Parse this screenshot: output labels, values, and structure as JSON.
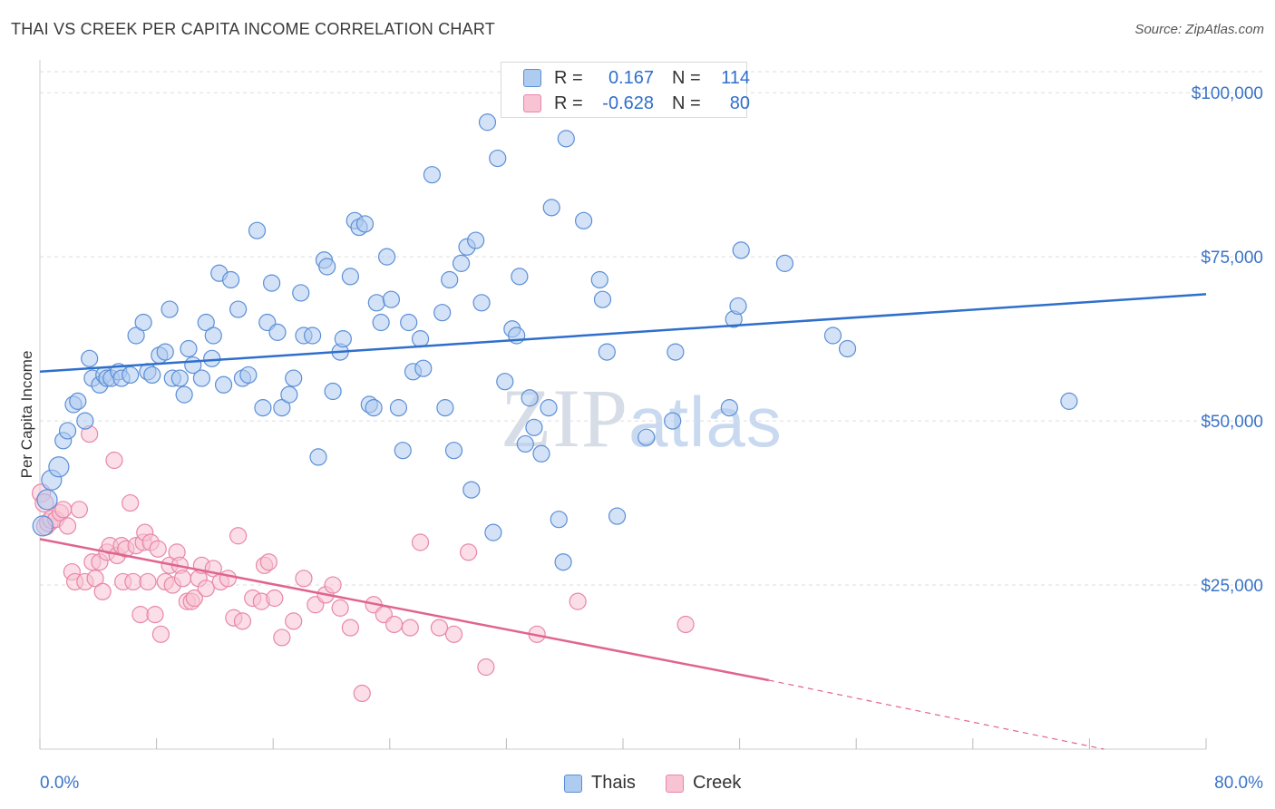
{
  "title": "THAI VS CREEK PER CAPITA INCOME CORRELATION CHART",
  "source": "Source: ZipAtlas.com",
  "watermark": {
    "part1": "ZIP",
    "part2": "atlas"
  },
  "legend_top": {
    "rows": [
      {
        "r_label": "R =",
        "r_value": "0.167",
        "n_label": "N =",
        "n_value": "114"
      },
      {
        "r_label": "R =",
        "r_value": "-0.628",
        "n_label": "N =",
        "n_value": "80"
      }
    ]
  },
  "legend_bottom": [
    "Thais",
    "Creek"
  ],
  "colors": {
    "thais_fill": "#aecbf0",
    "thais_stroke": "#5b8fd6",
    "thais_line": "#2f6fcb",
    "creek_fill": "#f8c3d3",
    "creek_stroke": "#e887a7",
    "creek_line": "#e0648f",
    "axis_label": "#3a74c8",
    "grid": "#dddddd"
  },
  "chart_data": {
    "type": "scatter",
    "title": "THAI VS CREEK PER CAPITA INCOME CORRELATION CHART",
    "xlabel": "",
    "ylabel": "Per Capita Income",
    "xlim": [
      0,
      80
    ],
    "ylim": [
      0,
      105000
    ],
    "x_tick_labels": [
      "0.0%",
      "80.0%"
    ],
    "y_ticks": [
      25000,
      50000,
      75000,
      100000
    ],
    "y_tick_labels": [
      "$25,000",
      "$50,000",
      "$75,000",
      "$100,000"
    ],
    "grid": true,
    "series": [
      {
        "name": "Thais",
        "r": 0.167,
        "n": 114,
        "trend": {
          "x": [
            0,
            80
          ],
          "y": [
            57500,
            69300
          ]
        },
        "points": [
          [
            0.2,
            34000
          ],
          [
            0.5,
            38000
          ],
          [
            0.8,
            41000
          ],
          [
            1.3,
            43000
          ],
          [
            1.6,
            47000
          ],
          [
            1.9,
            48500
          ],
          [
            2.3,
            52500
          ],
          [
            2.6,
            53000
          ],
          [
            3.1,
            50000
          ],
          [
            3.4,
            59500
          ],
          [
            3.6,
            56500
          ],
          [
            4.1,
            55500
          ],
          [
            4.4,
            57000
          ],
          [
            4.6,
            56500
          ],
          [
            4.9,
            56500
          ],
          [
            5.4,
            57500
          ],
          [
            5.6,
            56500
          ],
          [
            6.2,
            57000
          ],
          [
            6.6,
            63000
          ],
          [
            7.1,
            65000
          ],
          [
            7.4,
            57500
          ],
          [
            7.7,
            57000
          ],
          [
            8.2,
            60000
          ],
          [
            8.6,
            60500
          ],
          [
            8.9,
            67000
          ],
          [
            9.1,
            56500
          ],
          [
            9.6,
            56500
          ],
          [
            9.9,
            54000
          ],
          [
            10.2,
            61000
          ],
          [
            10.5,
            58500
          ],
          [
            11.1,
            56500
          ],
          [
            11.4,
            65000
          ],
          [
            11.8,
            59500
          ],
          [
            11.9,
            63000
          ],
          [
            12.3,
            72500
          ],
          [
            12.6,
            55500
          ],
          [
            13.1,
            71500
          ],
          [
            13.6,
            67000
          ],
          [
            13.9,
            56500
          ],
          [
            14.3,
            57000
          ],
          [
            14.9,
            79000
          ],
          [
            15.3,
            52000
          ],
          [
            15.6,
            65000
          ],
          [
            15.9,
            71000
          ],
          [
            16.3,
            63500
          ],
          [
            16.6,
            52000
          ],
          [
            17.1,
            54000
          ],
          [
            17.4,
            56500
          ],
          [
            17.9,
            69500
          ],
          [
            18.1,
            63000
          ],
          [
            18.7,
            63000
          ],
          [
            19.1,
            44500
          ],
          [
            19.5,
            74500
          ],
          [
            19.7,
            73500
          ],
          [
            20.1,
            54500
          ],
          [
            20.6,
            60500
          ],
          [
            20.8,
            62500
          ],
          [
            21.3,
            72000
          ],
          [
            21.6,
            80500
          ],
          [
            21.9,
            79500
          ],
          [
            22.3,
            80000
          ],
          [
            22.6,
            52500
          ],
          [
            22.9,
            52000
          ],
          [
            23.1,
            68000
          ],
          [
            23.4,
            65000
          ],
          [
            23.8,
            75000
          ],
          [
            24.1,
            68500
          ],
          [
            24.6,
            52000
          ],
          [
            24.9,
            45500
          ],
          [
            25.3,
            65000
          ],
          [
            25.6,
            57500
          ],
          [
            26.1,
            62500
          ],
          [
            26.3,
            58000
          ],
          [
            26.9,
            87500
          ],
          [
            27.6,
            66500
          ],
          [
            27.8,
            52000
          ],
          [
            28.1,
            71500
          ],
          [
            28.4,
            45500
          ],
          [
            28.9,
            74000
          ],
          [
            29.3,
            76500
          ],
          [
            29.6,
            39500
          ],
          [
            29.9,
            77500
          ],
          [
            30.3,
            68000
          ],
          [
            30.7,
            95500
          ],
          [
            31.1,
            33000
          ],
          [
            31.4,
            90000
          ],
          [
            31.9,
            56000
          ],
          [
            32.4,
            64000
          ],
          [
            32.7,
            63000
          ],
          [
            32.9,
            72000
          ],
          [
            33.3,
            46500
          ],
          [
            33.6,
            53500
          ],
          [
            33.9,
            49000
          ],
          [
            34.4,
            45000
          ],
          [
            34.9,
            52000
          ],
          [
            35.1,
            82500
          ],
          [
            35.6,
            35000
          ],
          [
            35.9,
            28500
          ],
          [
            36.1,
            93000
          ],
          [
            37.3,
            80500
          ],
          [
            38.4,
            71500
          ],
          [
            38.6,
            68500
          ],
          [
            38.9,
            60500
          ],
          [
            39.6,
            35500
          ],
          [
            41.6,
            47500
          ],
          [
            43.4,
            50000
          ],
          [
            43.6,
            60500
          ],
          [
            47.3,
            52000
          ],
          [
            47.6,
            65500
          ],
          [
            47.9,
            67500
          ],
          [
            48.1,
            76000
          ],
          [
            51.1,
            74000
          ],
          [
            54.4,
            63000
          ],
          [
            55.4,
            61000
          ],
          [
            70.6,
            53000
          ]
        ]
      },
      {
        "name": "Creek",
        "r": -0.628,
        "n": 80,
        "trend": {
          "x": [
            0,
            50
          ],
          "y": [
            32000,
            10500
          ]
        },
        "trend_dashed": {
          "x": [
            50,
            73
          ],
          "y": [
            10500,
            0
          ]
        },
        "points": [
          [
            0.1,
            39000
          ],
          [
            0.3,
            37500
          ],
          [
            0.4,
            34000
          ],
          [
            0.6,
            34500
          ],
          [
            0.8,
            35000
          ],
          [
            1.1,
            35000
          ],
          [
            1.4,
            36000
          ],
          [
            1.6,
            36500
          ],
          [
            1.9,
            34000
          ],
          [
            2.2,
            27000
          ],
          [
            2.4,
            25500
          ],
          [
            2.7,
            36500
          ],
          [
            3.1,
            25500
          ],
          [
            3.4,
            48000
          ],
          [
            3.6,
            28500
          ],
          [
            3.8,
            26000
          ],
          [
            4.1,
            28500
          ],
          [
            4.3,
            24000
          ],
          [
            4.6,
            30000
          ],
          [
            4.8,
            31000
          ],
          [
            5.1,
            44000
          ],
          [
            5.3,
            29500
          ],
          [
            5.6,
            31000
          ],
          [
            5.7,
            25500
          ],
          [
            5.9,
            30500
          ],
          [
            6.2,
            37500
          ],
          [
            6.4,
            25500
          ],
          [
            6.6,
            31000
          ],
          [
            6.9,
            20500
          ],
          [
            7.1,
            31500
          ],
          [
            7.2,
            33000
          ],
          [
            7.4,
            25500
          ],
          [
            7.6,
            31500
          ],
          [
            7.9,
            20500
          ],
          [
            8.1,
            30500
          ],
          [
            8.3,
            17500
          ],
          [
            8.6,
            25500
          ],
          [
            8.9,
            28000
          ],
          [
            9.1,
            25000
          ],
          [
            9.4,
            30000
          ],
          [
            9.6,
            28000
          ],
          [
            9.8,
            26000
          ],
          [
            10.1,
            22500
          ],
          [
            10.4,
            22500
          ],
          [
            10.6,
            23000
          ],
          [
            10.9,
            26000
          ],
          [
            11.1,
            28000
          ],
          [
            11.4,
            24500
          ],
          [
            11.9,
            27500
          ],
          [
            12.4,
            25500
          ],
          [
            12.9,
            26000
          ],
          [
            13.3,
            20000
          ],
          [
            13.6,
            32500
          ],
          [
            13.9,
            19500
          ],
          [
            14.6,
            23000
          ],
          [
            15.2,
            22500
          ],
          [
            15.4,
            28000
          ],
          [
            15.7,
            28500
          ],
          [
            16.1,
            23000
          ],
          [
            16.6,
            17000
          ],
          [
            17.4,
            19500
          ],
          [
            18.1,
            26000
          ],
          [
            18.9,
            22000
          ],
          [
            19.6,
            23500
          ],
          [
            20.1,
            25000
          ],
          [
            20.6,
            21500
          ],
          [
            21.3,
            18500
          ],
          [
            22.1,
            8500
          ],
          [
            22.9,
            22000
          ],
          [
            23.6,
            20500
          ],
          [
            24.3,
            19000
          ],
          [
            25.4,
            18500
          ],
          [
            26.1,
            31500
          ],
          [
            27.4,
            18500
          ],
          [
            28.4,
            17500
          ],
          [
            29.4,
            30000
          ],
          [
            30.6,
            12500
          ],
          [
            34.1,
            17500
          ],
          [
            36.9,
            22500
          ],
          [
            44.3,
            19000
          ]
        ]
      }
    ]
  }
}
